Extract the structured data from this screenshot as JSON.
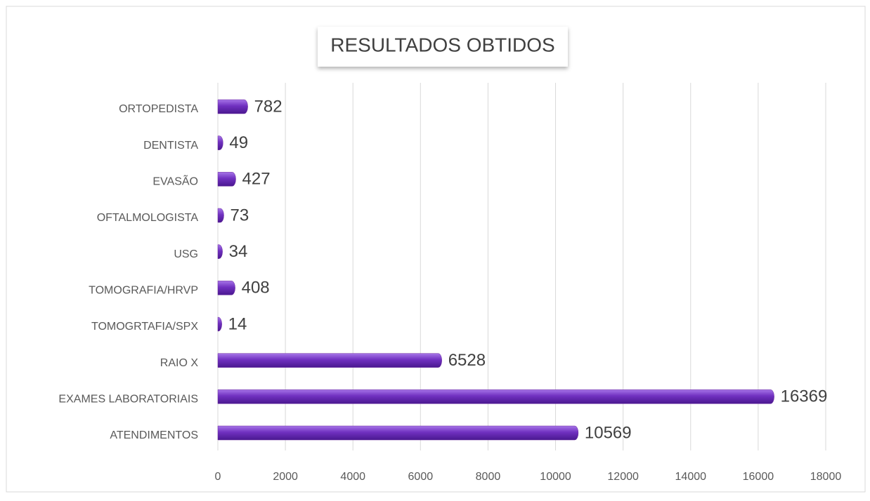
{
  "chart_data": {
    "type": "bar",
    "orientation": "horizontal",
    "title": "RESULTADOS OBTIDOS",
    "categories": [
      "ORTOPEDISTA",
      "DENTISTA",
      "EVASÃO",
      "OFTALMOLOGISTA",
      "USG",
      "TOMOGRAFIA/HRVP",
      "TOMOGRTAFIA/SPX",
      "RAIO X",
      "EXAMES LABORATORIAIS",
      "ATENDIMENTOS"
    ],
    "values": [
      782,
      49,
      427,
      73,
      34,
      408,
      14,
      6528,
      16369,
      10569
    ],
    "color": "#7030a0",
    "xlim": [
      0,
      18000
    ],
    "xticks": [
      0,
      2000,
      4000,
      6000,
      8000,
      10000,
      12000,
      14000,
      16000,
      18000
    ],
    "grid": true
  }
}
